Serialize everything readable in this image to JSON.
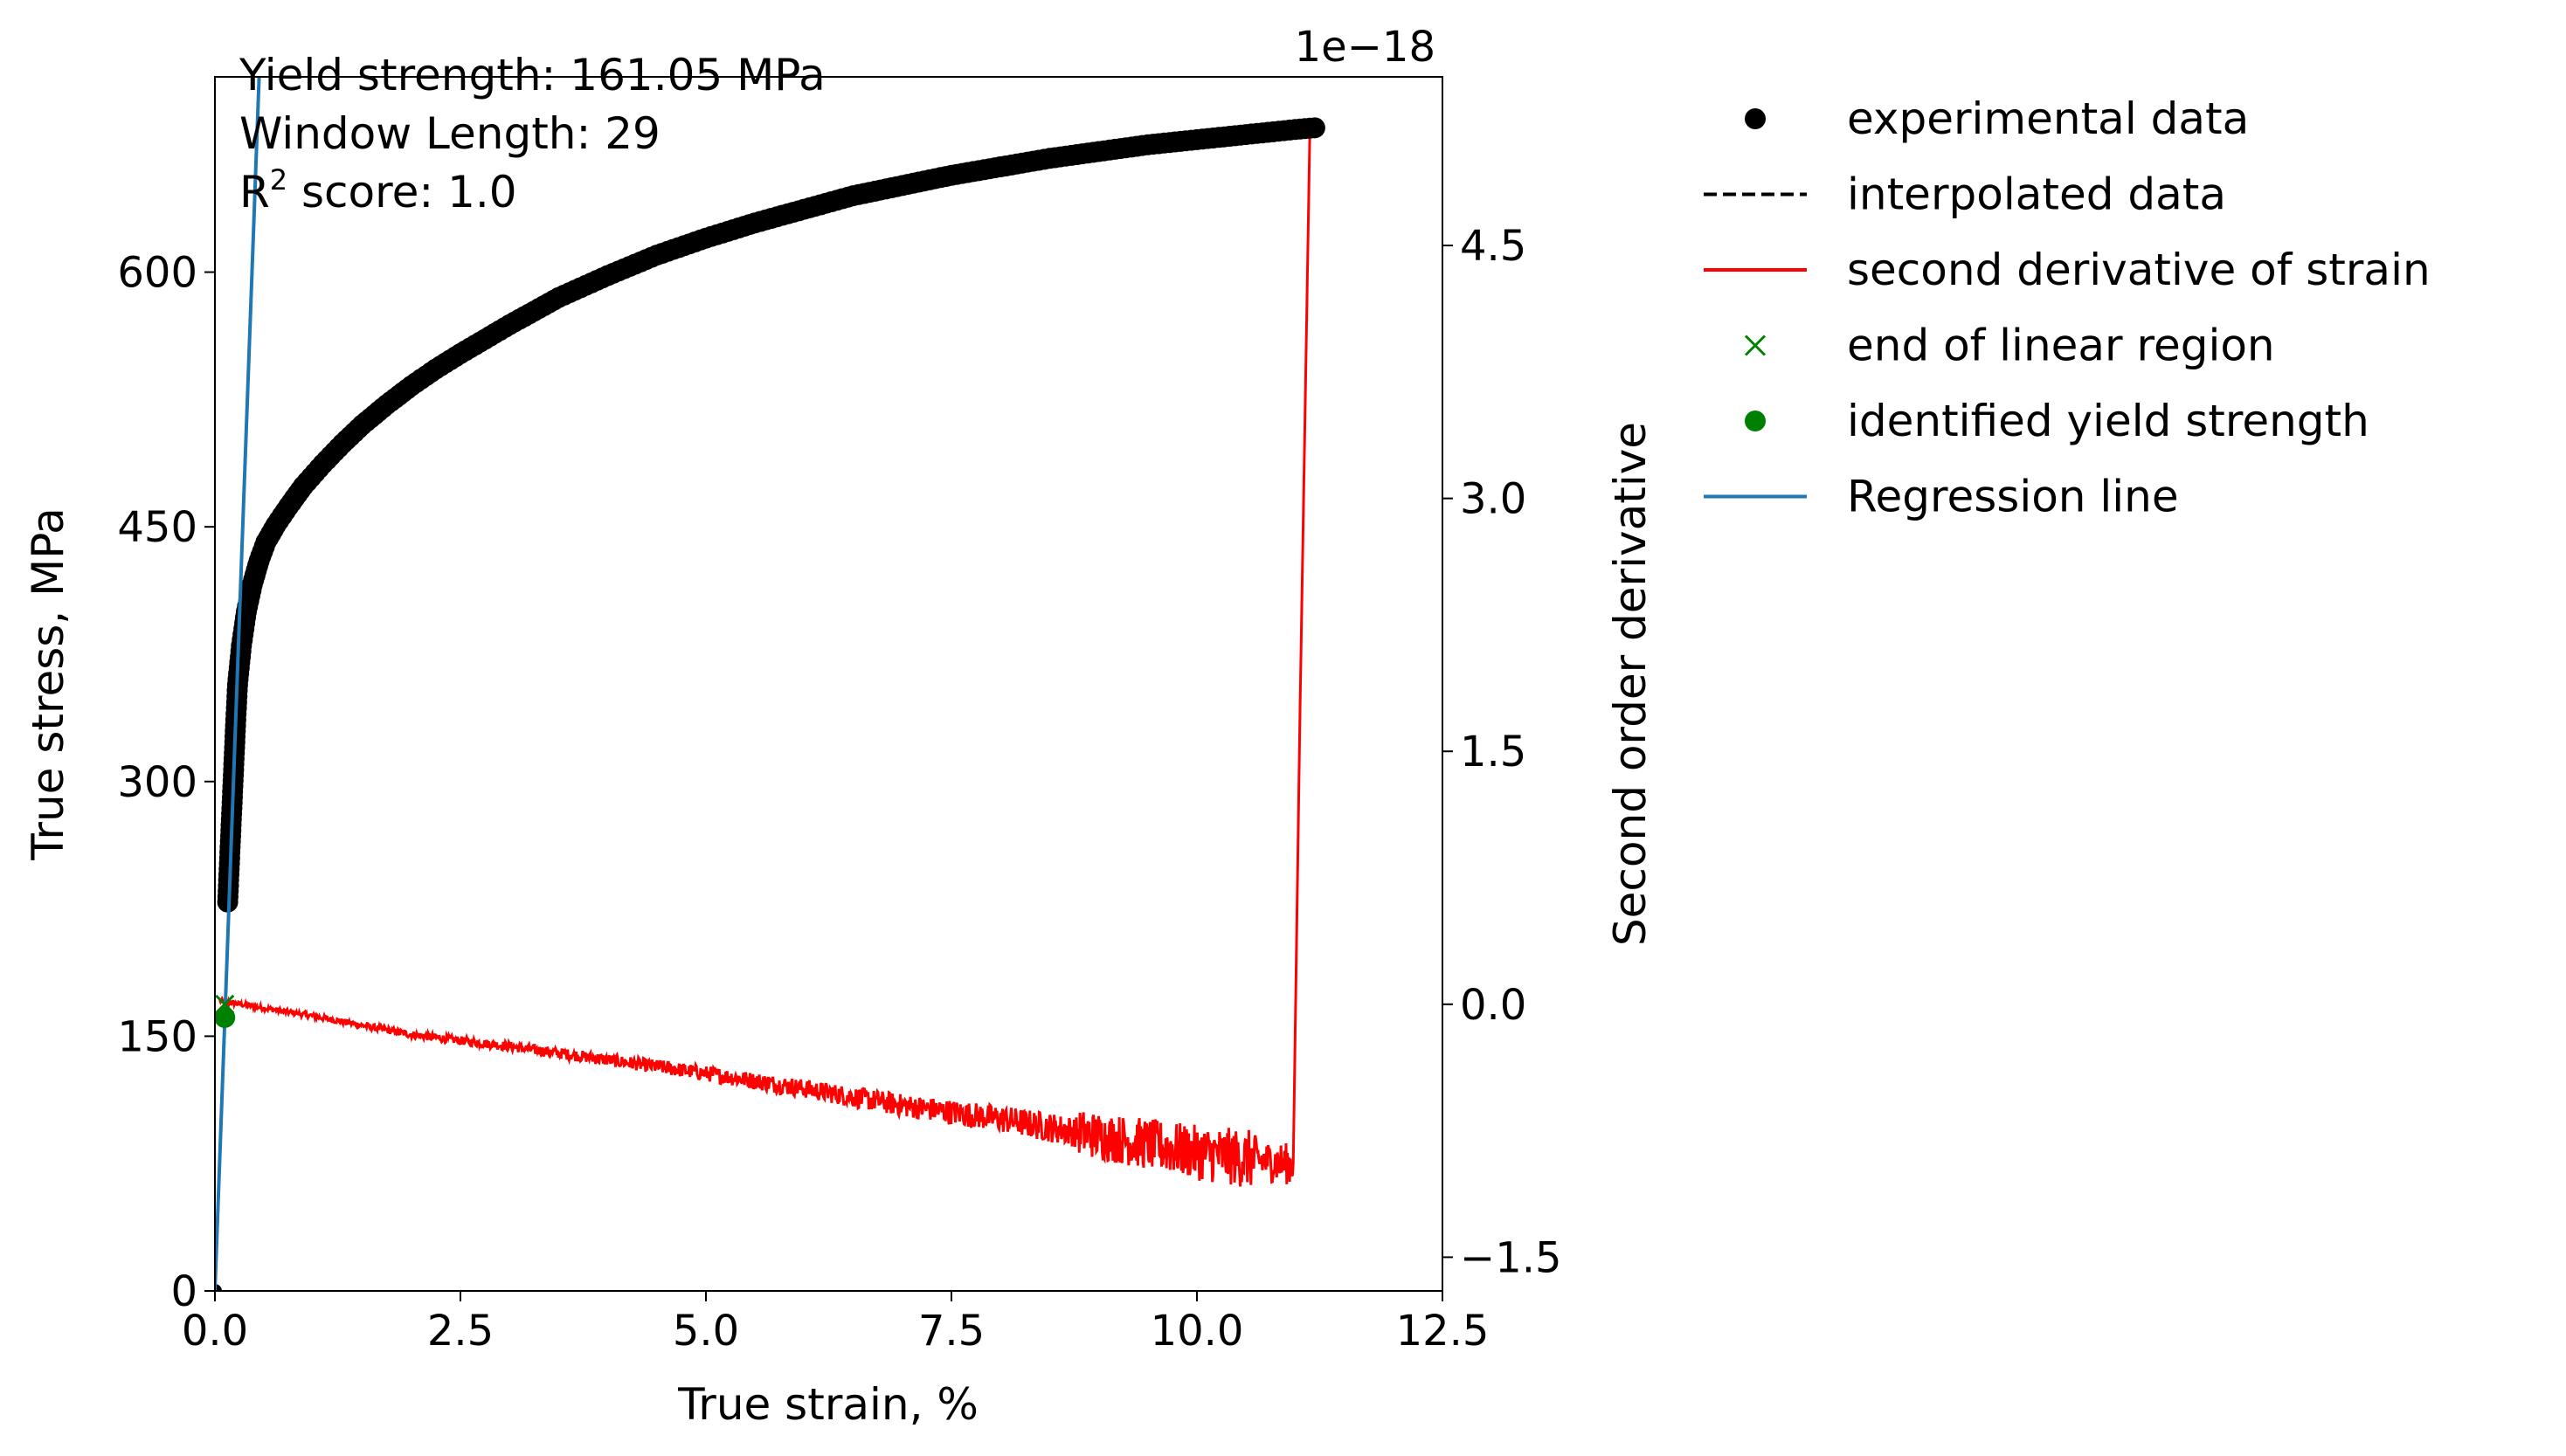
{
  "chart_data": {
    "type": "line",
    "xlabel": "True strain, %",
    "ylabel": "True stress, MPa",
    "y2label": "Second order derivative",
    "y2_offset_text": "1e−18",
    "xlim": [
      0,
      12.5
    ],
    "ylim": [
      0,
      715
    ],
    "y2lim": [
      -1.7,
      5.5
    ],
    "x_ticks": [
      "0.0",
      "2.5",
      "5.0",
      "7.5",
      "10.0",
      "12.5"
    ],
    "y_ticks": [
      "0",
      "150",
      "300",
      "450",
      "600"
    ],
    "y2_ticks": [
      "−1.5",
      "0.0",
      "1.5",
      "3.0",
      "4.5"
    ],
    "annotations": {
      "yield": "Yield strength: 161.05 MPa",
      "window": "Window Length: 29",
      "r2_prefix": "R",
      "r2_sup": "2",
      "r2_suffix": " score: 1.0"
    },
    "legend": {
      "placement": "outside-right-top",
      "items": [
        {
          "label": "experimental data",
          "marker": "circle",
          "color": "#000000"
        },
        {
          "label": "interpolated data",
          "marker": "dashed-line",
          "color": "#000000"
        },
        {
          "label": "second derivative of strain",
          "marker": "line",
          "color": "#ff0000"
        },
        {
          "label": "end of linear region",
          "marker": "x",
          "color": "#008000"
        },
        {
          "label": "identified yield strength",
          "marker": "circle",
          "color": "#008000"
        },
        {
          "label": "Regression line",
          "marker": "line",
          "color": "#1f77b4"
        }
      ]
    },
    "series": {
      "experimental": {
        "color": "#000000",
        "points": [
          [
            0.0,
            0
          ],
          [
            0.13,
            229
          ],
          [
            0.15,
            255
          ],
          [
            0.17,
            281
          ],
          [
            0.19,
            307
          ],
          [
            0.21,
            333
          ],
          [
            0.23,
            357
          ],
          [
            0.27,
            380
          ],
          [
            0.32,
            400
          ],
          [
            0.38,
            416
          ],
          [
            0.45,
            430
          ],
          [
            0.52,
            441
          ],
          [
            0.62,
            451
          ],
          [
            0.75,
            462
          ],
          [
            0.9,
            474
          ],
          [
            1.1,
            487
          ],
          [
            1.3,
            499
          ],
          [
            1.5,
            510
          ],
          [
            1.75,
            522
          ],
          [
            2.0,
            533
          ],
          [
            2.25,
            543
          ],
          [
            2.5,
            552
          ],
          [
            3.0,
            569
          ],
          [
            3.5,
            585
          ],
          [
            4.0,
            598
          ],
          [
            4.5,
            610
          ],
          [
            5.0,
            620
          ],
          [
            5.5,
            629
          ],
          [
            6.0,
            637
          ],
          [
            6.5,
            645
          ],
          [
            7.0,
            651
          ],
          [
            7.5,
            657
          ],
          [
            8.0,
            662
          ],
          [
            8.5,
            667
          ],
          [
            9.0,
            671
          ],
          [
            9.5,
            675
          ],
          [
            10.0,
            678
          ],
          [
            10.5,
            681
          ],
          [
            11.0,
            684
          ],
          [
            11.2,
            685
          ]
        ]
      },
      "second_derivative": {
        "color": "#ff0000",
        "trend": [
          [
            0.05,
            0.02
          ],
          [
            1.0,
            -0.07
          ],
          [
            2.0,
            -0.18
          ],
          [
            3.0,
            -0.25
          ],
          [
            4.0,
            -0.33
          ],
          [
            5.0,
            -0.41
          ],
          [
            6.0,
            -0.5
          ],
          [
            7.0,
            -0.6
          ],
          [
            8.0,
            -0.68
          ],
          [
            9.0,
            -0.78
          ],
          [
            10.0,
            -0.88
          ],
          [
            10.98,
            -0.95
          ]
        ],
        "spike": [
          [
            10.98,
            -0.95
          ],
          [
            11.05,
            1.75
          ],
          [
            11.15,
            5.2
          ]
        ]
      },
      "regression": {
        "color": "#1f77b4",
        "points": [
          [
            0.0,
            0
          ],
          [
            0.45,
            715
          ]
        ]
      },
      "end_of_linear": {
        "color": "#008000",
        "x": 0.1,
        "y2": 0.0
      },
      "yield_point": {
        "color": "#008000",
        "x": 0.1,
        "y": 161.05
      }
    }
  }
}
